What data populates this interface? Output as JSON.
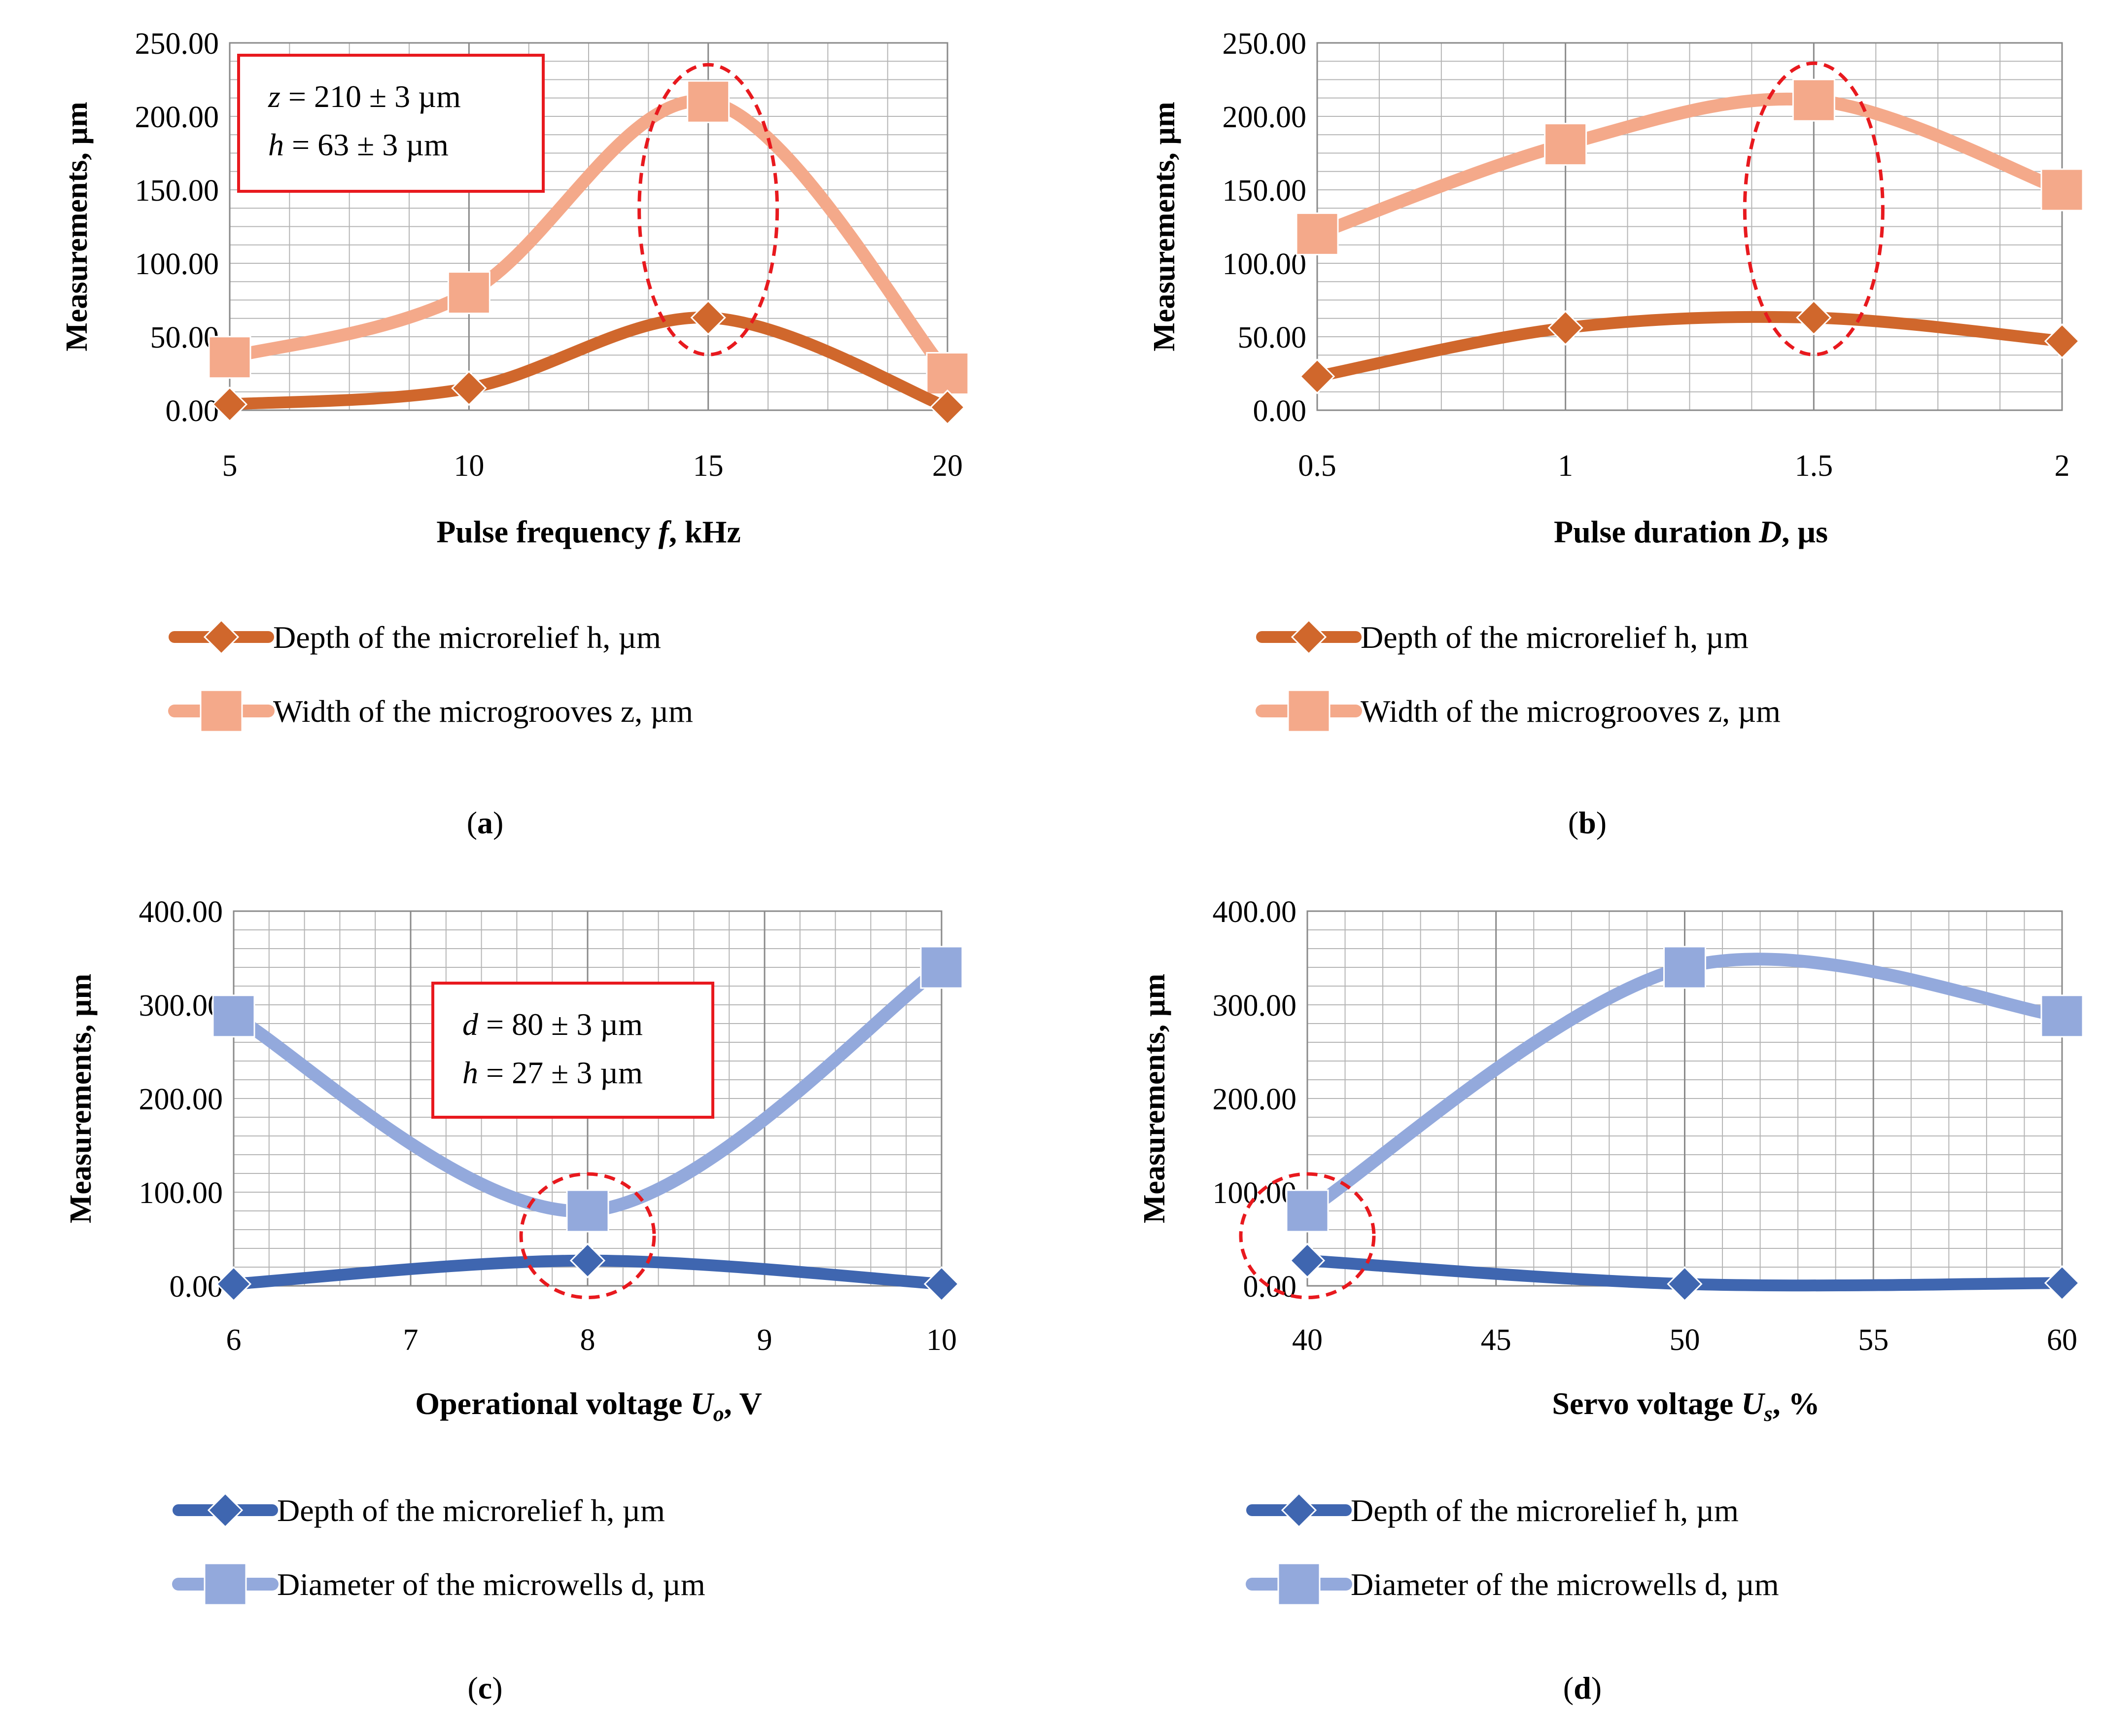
{
  "colors": {
    "depth_orange": "#D0672C",
    "width_peach": "#F4A98A",
    "depth_blue": "#3F66B0",
    "diam_lightblue": "#93A9DC",
    "highlight": "#E8191E",
    "grid": "#B5B5B5"
  },
  "chart_data": [
    {
      "panel": "a",
      "type": "line",
      "panel_label": "a",
      "title": "",
      "xlabel_pre": "Pulse frequency ",
      "xlabel_var": "f",
      "xlabel_sub": "",
      "xlabel_post": ", kHz",
      "ylabel": "Measurements, µm",
      "x": [
        5,
        10,
        15,
        20
      ],
      "x_ticks": [
        "5",
        "10",
        "15",
        "20"
      ],
      "ylim": [
        0,
        250
      ],
      "y_ticks": [
        "0.00",
        "50.00",
        "100.00",
        "150.00",
        "200.00",
        "250.00"
      ],
      "grid": true,
      "series": [
        {
          "name": "Depth of the microrelief h, µm",
          "marker": "diamond",
          "values": [
            4,
            15,
            63,
            2
          ]
        },
        {
          "name": "Width of the microgrooves z, µm",
          "marker": "square",
          "values": [
            36,
            80,
            210,
            25
          ]
        }
      ],
      "annotation": {
        "lines": [
          {
            "var": "z",
            "text": " = 210 ± 3 µm"
          },
          {
            "var": "h",
            "text": " = 63 ± 3 µm"
          }
        ]
      },
      "highlight_x": 15
    },
    {
      "panel": "b",
      "type": "line",
      "panel_label": "b",
      "title": "",
      "xlabel_pre": "Pulse duration ",
      "xlabel_var": "D",
      "xlabel_sub": "",
      "xlabel_post": ", µs",
      "ylabel": "Measurements, µm",
      "x": [
        0.5,
        1,
        1.5,
        2
      ],
      "x_ticks": [
        "0.5",
        "1",
        "1.5",
        "2"
      ],
      "ylim": [
        0,
        250
      ],
      "y_ticks": [
        "0.00",
        "50.00",
        "100.00",
        "150.00",
        "200.00",
        "250.00"
      ],
      "grid": true,
      "series": [
        {
          "name": "Depth of the microrelief h, µm",
          "marker": "diamond",
          "values": [
            23,
            56,
            63,
            47
          ]
        },
        {
          "name": "Width of the microgrooves z, µm",
          "marker": "square",
          "values": [
            120,
            181,
            211,
            150
          ]
        }
      ],
      "annotation": null,
      "highlight_x": 1.5
    },
    {
      "panel": "c",
      "type": "line",
      "panel_label": "c",
      "title": "",
      "xlabel_pre": "Operational voltage ",
      "xlabel_var": "U",
      "xlabel_sub": "o",
      "xlabel_post": ", V",
      "ylabel": "Measurements, µm",
      "x": [
        6,
        8,
        10
      ],
      "x_ticks": [
        "6",
        "7",
        "8",
        "9",
        "10"
      ],
      "x_tick_values": [
        6,
        7,
        8,
        9,
        10
      ],
      "ylim": [
        0,
        400
      ],
      "y_ticks": [
        "0.00",
        "100.00",
        "200.00",
        "300.00",
        "400.00"
      ],
      "grid": true,
      "series": [
        {
          "name": "Depth of the microrelief h, µm",
          "marker": "diamond",
          "values": [
            2,
            27,
            2
          ]
        },
        {
          "name": "Diameter of the microwells d, µm",
          "marker": "square",
          "values": [
            288,
            80,
            340
          ]
        }
      ],
      "annotation": {
        "lines": [
          {
            "var": "d",
            "text": " = 80 ± 3 µm"
          },
          {
            "var": "h",
            "text": " = 27 ± 3 µm"
          }
        ]
      },
      "highlight_x": 8
    },
    {
      "panel": "d",
      "type": "line",
      "panel_label": "d",
      "title": "",
      "xlabel_pre": "Servo voltage ",
      "xlabel_var": "U",
      "xlabel_sub": "s",
      "xlabel_post": ", %",
      "ylabel": "Measurements, µm",
      "x": [
        40,
        50,
        60
      ],
      "x_ticks": [
        "40",
        "45",
        "50",
        "55",
        "60"
      ],
      "x_tick_values": [
        40,
        45,
        50,
        55,
        60
      ],
      "ylim": [
        0,
        400
      ],
      "y_ticks": [
        "0.00",
        "100.00",
        "200.00",
        "300.00",
        "400.00"
      ],
      "grid": true,
      "series": [
        {
          "name": "Depth of the microrelief h, µm",
          "marker": "diamond",
          "values": [
            27,
            2,
            3
          ]
        },
        {
          "name": "Diameter of the microwells d, µm",
          "marker": "square",
          "values": [
            80,
            340,
            288
          ]
        }
      ],
      "annotation": null,
      "highlight_x": 40
    }
  ]
}
